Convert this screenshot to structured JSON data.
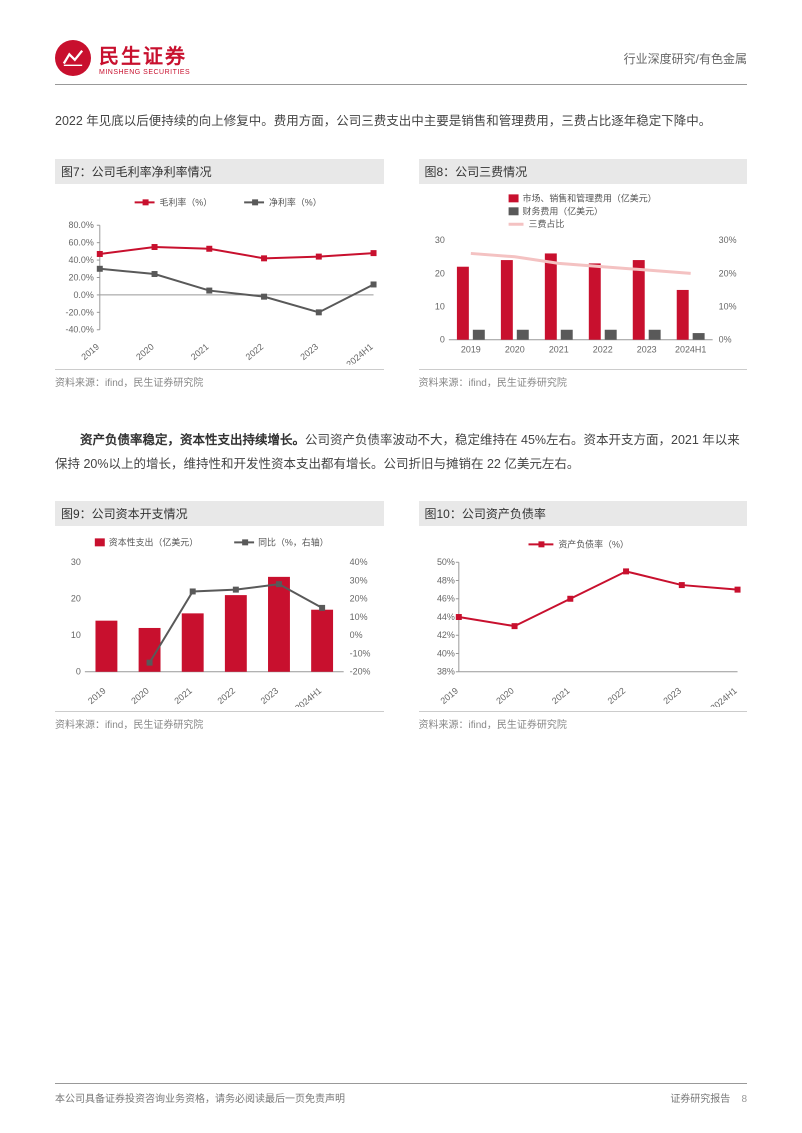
{
  "header": {
    "logo_cn": "民生证券",
    "logo_en": "MINSHENG SECURITIES",
    "right": "行业深度研究/有色金属"
  },
  "para1": "2022 年见底以后便持续的向上修复中。费用方面，公司三费支出中主要是销售和管理费用，三费占比逐年稳定下降中。",
  "para2_bold": "资产负债率稳定，资本性支出持续增长。",
  "para2_rest": "公司资产负债率波动不大，稳定维持在 45%左右。资本开支方面，2021 年以来保持 20%以上的增长，维持性和开发性资本支出都有增长。公司折旧与摊销在 22 亿美元左右。",
  "chart7": {
    "title": "图7：公司毛利率净利率情况",
    "type": "line",
    "categories": [
      "2019",
      "2020",
      "2021",
      "2022",
      "2023",
      "2024H1"
    ],
    "series": [
      {
        "name": "毛利率（%）",
        "color": "#c8102e",
        "values": [
          47,
          55,
          53,
          42,
          44,
          48
        ]
      },
      {
        "name": "净利率（%）",
        "color": "#595959",
        "values": [
          30,
          24,
          5,
          -2,
          -20,
          12
        ]
      }
    ],
    "ylim": [
      -40,
      80
    ],
    "ytick_step": 20,
    "source": "资料来源：ifind，民生证券研究院"
  },
  "chart8": {
    "title": "图8：公司三费情况",
    "type": "bar-line",
    "categories": [
      "2019",
      "2020",
      "2021",
      "2022",
      "2023",
      "2024H1"
    ],
    "bars": [
      {
        "name": "市场、销售和管理费用（亿美元）",
        "color": "#c8102e",
        "values": [
          22,
          24,
          26,
          23,
          24,
          15
        ]
      },
      {
        "name": "财务费用（亿美元）",
        "color": "#595959",
        "values": [
          3,
          3,
          3,
          3,
          3,
          2
        ]
      }
    ],
    "line": {
      "name": "三费占比",
      "color": "#f4c2c2",
      "values": [
        26,
        25,
        23,
        22,
        21,
        20
      ]
    },
    "ylim_left": [
      0,
      30
    ],
    "ytick_left": 10,
    "ylim_right": [
      0,
      30
    ],
    "ytick_right": 10,
    "source": "资料来源：ifind，民生证券研究院"
  },
  "chart9": {
    "title": "图9：公司资本开支情况",
    "type": "bar-line",
    "categories": [
      "2019",
      "2020",
      "2021",
      "2022",
      "2023",
      "2024H1"
    ],
    "bar": {
      "name": "资本性支出（亿美元）",
      "color": "#c8102e",
      "values": [
        14,
        12,
        16,
        21,
        26,
        17
      ]
    },
    "line": {
      "name": "同比（%，右轴）",
      "color": "#595959",
      "values": [
        null,
        -15,
        24,
        25,
        28,
        15
      ]
    },
    "ylim_left": [
      0,
      30
    ],
    "ytick_left": 10,
    "ylim_right": [
      -20,
      40
    ],
    "ytick_right": 10,
    "source": "资料来源：ifind，民生证券研究院"
  },
  "chart10": {
    "title": "图10：公司资产负债率",
    "type": "line",
    "categories": [
      "2019",
      "2020",
      "2021",
      "2022",
      "2023",
      "2024H1"
    ],
    "series": [
      {
        "name": "资产负债率（%）",
        "color": "#c8102e",
        "values": [
          44,
          43,
          46,
          49,
          47.5,
          47
        ]
      }
    ],
    "ylim": [
      38,
      50
    ],
    "ytick_step": 2,
    "source": "资料来源：ifind，民生证券研究院"
  },
  "footer": {
    "left": "本公司具备证券投资咨询业务资格，请务必阅读最后一页免责声明",
    "right": "证券研究报告",
    "page": "8"
  }
}
